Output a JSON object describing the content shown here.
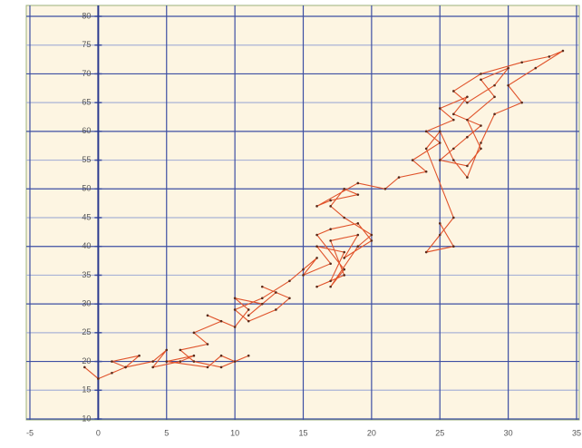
{
  "chart_data": {
    "type": "line",
    "x": [
      -1,
      0,
      1,
      2,
      1,
      3,
      2,
      4,
      5,
      4,
      6,
      7,
      5,
      8,
      9,
      10,
      11,
      9,
      7,
      6,
      8,
      7,
      9,
      8,
      10,
      11,
      10,
      12,
      11,
      13,
      12,
      14,
      13,
      11,
      10,
      12,
      14,
      15,
      16,
      15,
      17,
      16,
      18,
      17,
      16,
      18,
      17,
      19,
      18,
      20,
      19,
      17,
      16,
      18,
      17,
      19,
      20,
      18,
      17,
      18,
      19,
      17,
      16,
      19,
      21,
      22,
      24,
      23,
      25,
      24,
      26,
      25,
      27,
      26,
      28,
      27,
      26,
      25,
      27,
      28,
      27,
      29,
      28,
      30,
      29,
      27,
      26,
      28,
      31,
      33,
      34,
      32,
      30,
      31,
      29,
      28,
      27,
      26,
      25,
      24,
      26,
      25,
      24,
      26,
      25
    ],
    "series": [
      {
        "color": "#e0532b",
        "values": [
          19,
          17,
          18,
          19,
          20,
          21,
          19,
          20,
          22,
          19,
          20,
          21,
          20,
          19,
          21,
          20,
          21,
          19,
          20,
          22,
          23,
          25,
          27,
          28,
          26,
          29,
          31,
          30,
          28,
          32,
          33,
          31,
          29,
          27,
          29,
          31,
          34,
          36,
          38,
          35,
          37,
          40,
          39,
          34,
          33,
          35,
          41,
          42,
          38,
          41,
          44,
          43,
          42,
          36,
          33,
          40,
          42,
          45,
          47,
          50,
          49,
          48,
          47,
          51,
          50,
          52,
          53,
          55,
          58,
          60,
          62,
          64,
          66,
          63,
          61,
          59,
          57,
          55,
          54,
          57,
          62,
          66,
          69,
          71,
          68,
          65,
          67,
          70,
          72,
          73,
          74,
          71,
          68,
          65,
          63,
          58,
          52,
          55,
          60,
          57,
          45,
          42,
          39,
          40,
          44
        ]
      }
    ],
    "xlim": [
      -5,
      35
    ],
    "ylim": [
      10,
      80
    ],
    "xticks": [
      -5,
      0,
      5,
      10,
      15,
      20,
      25,
      30,
      35
    ],
    "yticks": [
      10,
      15,
      20,
      25,
      30,
      35,
      40,
      45,
      50,
      55,
      60,
      65,
      70,
      75,
      80
    ],
    "grid": true
  }
}
